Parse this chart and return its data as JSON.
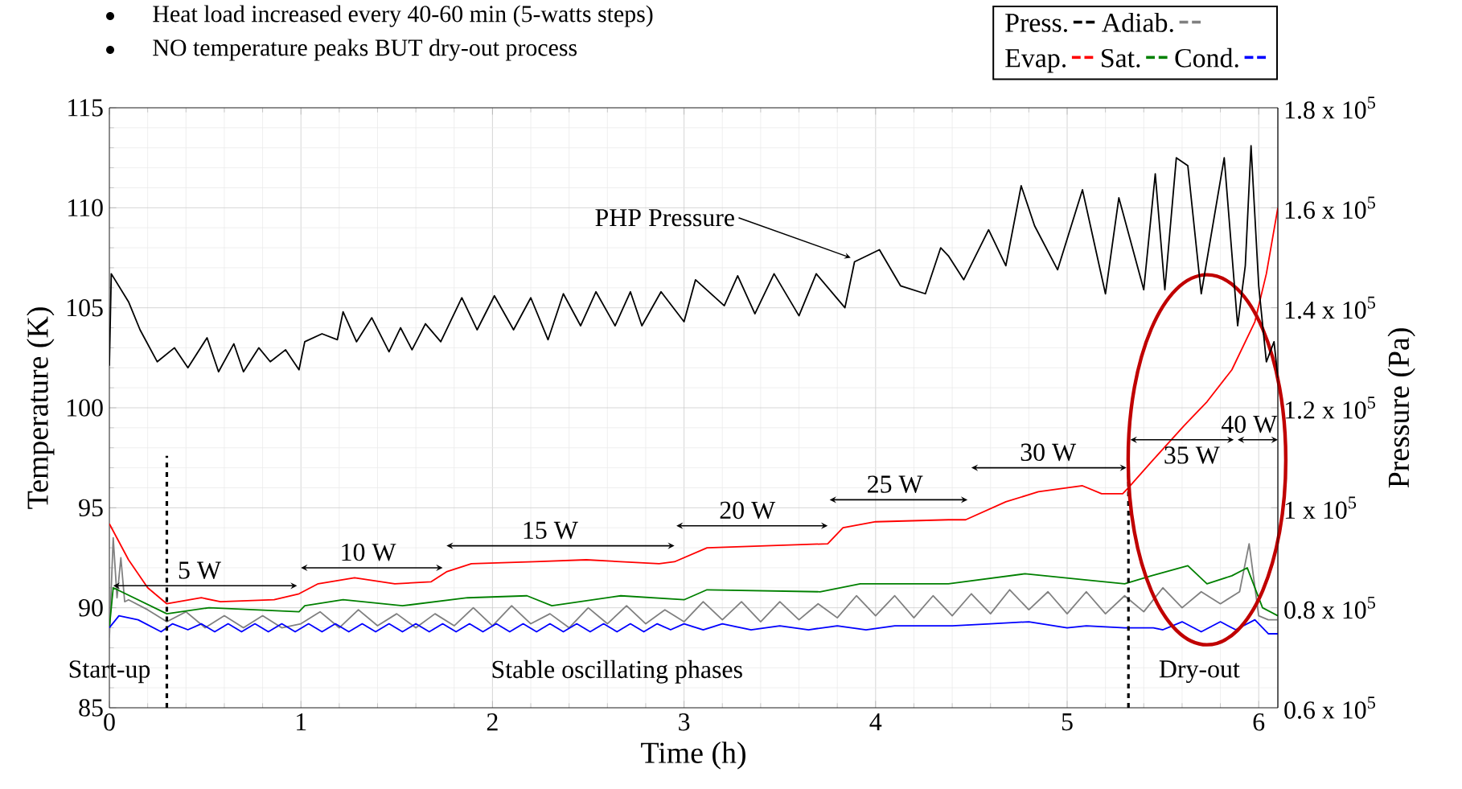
{
  "chart_data": {
    "type": "line",
    "xlabel": "Time (h)",
    "ylabel": "Temperature (K)",
    "y2label": "Pressure (Pa)",
    "xlim": [
      0,
      6.1
    ],
    "xticks": [
      0,
      1,
      2,
      3,
      4,
      5,
      6
    ],
    "ylim": [
      85,
      115
    ],
    "yticks": [
      85,
      90,
      95,
      100,
      105,
      110,
      115
    ],
    "y2lim": [
      60000,
      180000
    ],
    "y2ticks": [
      {
        "value": 60000,
        "label": "0.6 x 10$^{5}$"
      },
      {
        "value": 80000,
        "label": "0.8 x 10$^{5}$"
      },
      {
        "value": 100000,
        "label": "1 x 10$^{5}$"
      },
      {
        "value": 120000,
        "label": "1.2 x 10$^{5}$"
      },
      {
        "value": 140000,
        "label": "1.4 x 10$^{5}$"
      },
      {
        "value": 160000,
        "label": "1.6 x 10$^{5}$"
      },
      {
        "value": 180000,
        "label": "1.8 x 10$^{5}$"
      }
    ],
    "grid": true,
    "legend": "top right",
    "series": [
      {
        "name": "Press.",
        "color": "#000000",
        "axis": "y2",
        "x": [
          0,
          0.01,
          0.1,
          0.16,
          0.25,
          0.34,
          0.41,
          0.51,
          0.57,
          0.65,
          0.7,
          0.78,
          0.84,
          0.92,
          0.99,
          1.02,
          1.11,
          1.19,
          1.22,
          1.29,
          1.37,
          1.46,
          1.52,
          1.58,
          1.65,
          1.73,
          1.84,
          1.92,
          2.01,
          2.11,
          2.2,
          2.29,
          2.37,
          2.46,
          2.54,
          2.64,
          2.72,
          2.78,
          2.88,
          3.0,
          3.06,
          3.21,
          3.28,
          3.37,
          3.47,
          3.6,
          3.69,
          3.84,
          3.89,
          4.02,
          4.13,
          4.26,
          4.34,
          4.38,
          4.46,
          4.59,
          4.68,
          4.76,
          4.83,
          4.95,
          5.08,
          5.2,
          5.27,
          5.4,
          5.46,
          5.51,
          5.57,
          5.63,
          5.7,
          5.82,
          5.89,
          5.93,
          5.96,
          6.0,
          6.04,
          6.08,
          6.1
        ],
        "values": [
          128400,
          146800,
          141200,
          135600,
          129200,
          132000,
          128000,
          134000,
          127200,
          132800,
          127200,
          132000,
          129200,
          131600,
          127600,
          133200,
          134800,
          133600,
          139200,
          133200,
          138000,
          131200,
          136000,
          131600,
          136800,
          133200,
          142000,
          135600,
          142400,
          135600,
          142000,
          133600,
          142800,
          136400,
          143200,
          136400,
          143200,
          136400,
          143200,
          137200,
          145600,
          140400,
          146400,
          138800,
          146800,
          138400,
          146800,
          140000,
          149200,
          151600,
          144400,
          142800,
          152000,
          150400,
          145600,
          155600,
          148400,
          164400,
          156400,
          147600,
          163600,
          142800,
          162000,
          143600,
          166800,
          143600,
          170000,
          168400,
          142800,
          170000,
          136400,
          148400,
          172400,
          144400,
          129200,
          133200,
          126000
        ]
      },
      {
        "name": "Adiab.",
        "color": "#808080",
        "x": [
          0,
          0.02,
          0.04,
          0.06,
          0.08,
          0.1,
          0.2,
          0.3,
          0.4,
          0.5,
          0.6,
          0.7,
          0.8,
          0.9,
          1.0,
          1.1,
          1.2,
          1.3,
          1.4,
          1.5,
          1.6,
          1.7,
          1.8,
          1.9,
          2.0,
          2.1,
          2.2,
          2.3,
          2.4,
          2.5,
          2.6,
          2.7,
          2.8,
          2.9,
          3.0,
          3.1,
          3.2,
          3.3,
          3.4,
          3.5,
          3.6,
          3.7,
          3.8,
          3.9,
          4.0,
          4.1,
          4.2,
          4.3,
          4.4,
          4.5,
          4.6,
          4.7,
          4.8,
          4.9,
          5.0,
          5.1,
          5.2,
          5.3,
          5.4,
          5.5,
          5.6,
          5.7,
          5.8,
          5.9,
          5.95,
          6.0,
          6.05,
          6.1
        ],
        "values": [
          88.5,
          93.5,
          90.5,
          92.5,
          90.3,
          90.4,
          89.9,
          89.3,
          89.8,
          89.0,
          89.6,
          89.0,
          89.6,
          89.0,
          89.2,
          89.8,
          89.0,
          89.9,
          89.1,
          89.7,
          89.0,
          89.7,
          89.1,
          90.0,
          89.1,
          90.1,
          89.2,
          89.7,
          89.0,
          90.0,
          89.2,
          90.1,
          89.2,
          89.9,
          89.3,
          90.3,
          89.4,
          90.3,
          89.3,
          90.3,
          89.4,
          90.2,
          89.5,
          90.6,
          89.6,
          90.6,
          89.5,
          90.6,
          89.6,
          90.7,
          89.7,
          90.9,
          89.9,
          90.8,
          89.7,
          90.8,
          89.7,
          90.6,
          89.8,
          91.0,
          90.0,
          90.8,
          90.2,
          90.8,
          93.2,
          89.6,
          89.4,
          89.4
        ]
      },
      {
        "name": "Evap.",
        "color": "#ff0000",
        "x": [
          0,
          0.1,
          0.2,
          0.3,
          0.48,
          0.58,
          0.86,
          0.99,
          1.09,
          1.28,
          1.49,
          1.68,
          1.76,
          1.89,
          2.22,
          2.49,
          2.87,
          2.95,
          3.12,
          3.75,
          3.83,
          4.0,
          4.38,
          4.47,
          4.68,
          4.85,
          5.08,
          5.18,
          5.29,
          5.32,
          5.44,
          5.61,
          5.73,
          5.86,
          5.98,
          6.04,
          6.1
        ],
        "values": [
          94.2,
          92.4,
          91.0,
          90.2,
          90.5,
          90.3,
          90.4,
          90.7,
          91.2,
          91.5,
          91.2,
          91.3,
          91.8,
          92.2,
          92.3,
          92.4,
          92.2,
          92.3,
          93.0,
          93.2,
          94.0,
          94.3,
          94.4,
          94.4,
          95.3,
          95.8,
          96.1,
          95.7,
          95.7,
          96.0,
          97.3,
          99.1,
          100.3,
          101.9,
          104.3,
          106.7,
          110.0
        ]
      },
      {
        "name": "Sat.",
        "color": "#008000",
        "x": [
          0,
          0.02,
          0.3,
          0.52,
          0.99,
          1.02,
          1.22,
          1.53,
          1.87,
          2.18,
          2.31,
          2.67,
          3.0,
          3.12,
          3.71,
          3.92,
          4.38,
          4.78,
          5.09,
          5.3,
          5.44,
          5.63,
          5.73,
          5.86,
          5.94,
          6.02,
          6.1
        ],
        "values": [
          89.0,
          91.0,
          89.7,
          90.0,
          89.8,
          90.1,
          90.4,
          90.1,
          90.5,
          90.6,
          90.1,
          90.6,
          90.4,
          90.9,
          90.8,
          91.2,
          91.2,
          91.7,
          91.4,
          91.2,
          91.6,
          92.1,
          91.2,
          91.6,
          92.0,
          90.0,
          89.6
        ]
      },
      {
        "name": "Cond.",
        "color": "#0000ff",
        "x": [
          0,
          0.05,
          0.15,
          0.27,
          0.33,
          0.41,
          0.48,
          0.55,
          0.62,
          0.69,
          0.76,
          0.83,
          0.9,
          0.97,
          1.04,
          1.11,
          1.18,
          1.25,
          1.32,
          1.39,
          1.46,
          1.53,
          1.6,
          1.67,
          1.74,
          1.81,
          1.88,
          1.95,
          2.02,
          2.09,
          2.16,
          2.23,
          2.3,
          2.37,
          2.44,
          2.51,
          2.58,
          2.65,
          2.72,
          2.79,
          2.86,
          2.93,
          3.0,
          3.1,
          3.2,
          3.35,
          3.5,
          3.65,
          3.8,
          3.95,
          4.1,
          4.4,
          4.6,
          4.8,
          5.0,
          5.1,
          5.3,
          5.45,
          5.5,
          5.6,
          5.7,
          5.8,
          5.88,
          5.98,
          6.05,
          6.1
        ],
        "values": [
          89.0,
          89.6,
          89.4,
          88.8,
          89.2,
          88.9,
          89.2,
          88.8,
          89.2,
          88.8,
          89.2,
          88.8,
          89.2,
          88.8,
          89.2,
          88.8,
          89.2,
          88.8,
          89.2,
          88.8,
          89.2,
          88.8,
          89.2,
          88.8,
          89.2,
          88.8,
          89.2,
          88.8,
          89.2,
          88.8,
          89.2,
          88.8,
          89.2,
          88.8,
          89.2,
          88.8,
          89.2,
          88.8,
          89.2,
          88.8,
          89.2,
          88.9,
          89.2,
          88.9,
          89.2,
          88.9,
          89.1,
          88.9,
          89.1,
          88.9,
          89.1,
          89.1,
          89.2,
          89.3,
          89.0,
          89.1,
          89.0,
          89.0,
          88.9,
          89.3,
          88.8,
          89.3,
          88.9,
          89.4,
          88.7,
          88.7
        ]
      }
    ],
    "ref_lines": [
      {
        "axis": "x",
        "value": 0.3,
        "color": "#000000",
        "line_style": "dashed"
      },
      {
        "axis": "x",
        "value": 5.32,
        "color": "#000000",
        "line_style": "dashed"
      }
    ],
    "annotations": [
      "5 W",
      "10 W",
      "15 W",
      "20 W",
      "25 W",
      "30 W",
      "35 W",
      "40 W",
      "PHP Pressure",
      "Start-up",
      "Stable oscillating phases",
      "Dry-out",
      "Heat load increased every 40-60 min (5-watts steps)",
      "NO temperature peaks BUT dry-out process"
    ]
  }
}
